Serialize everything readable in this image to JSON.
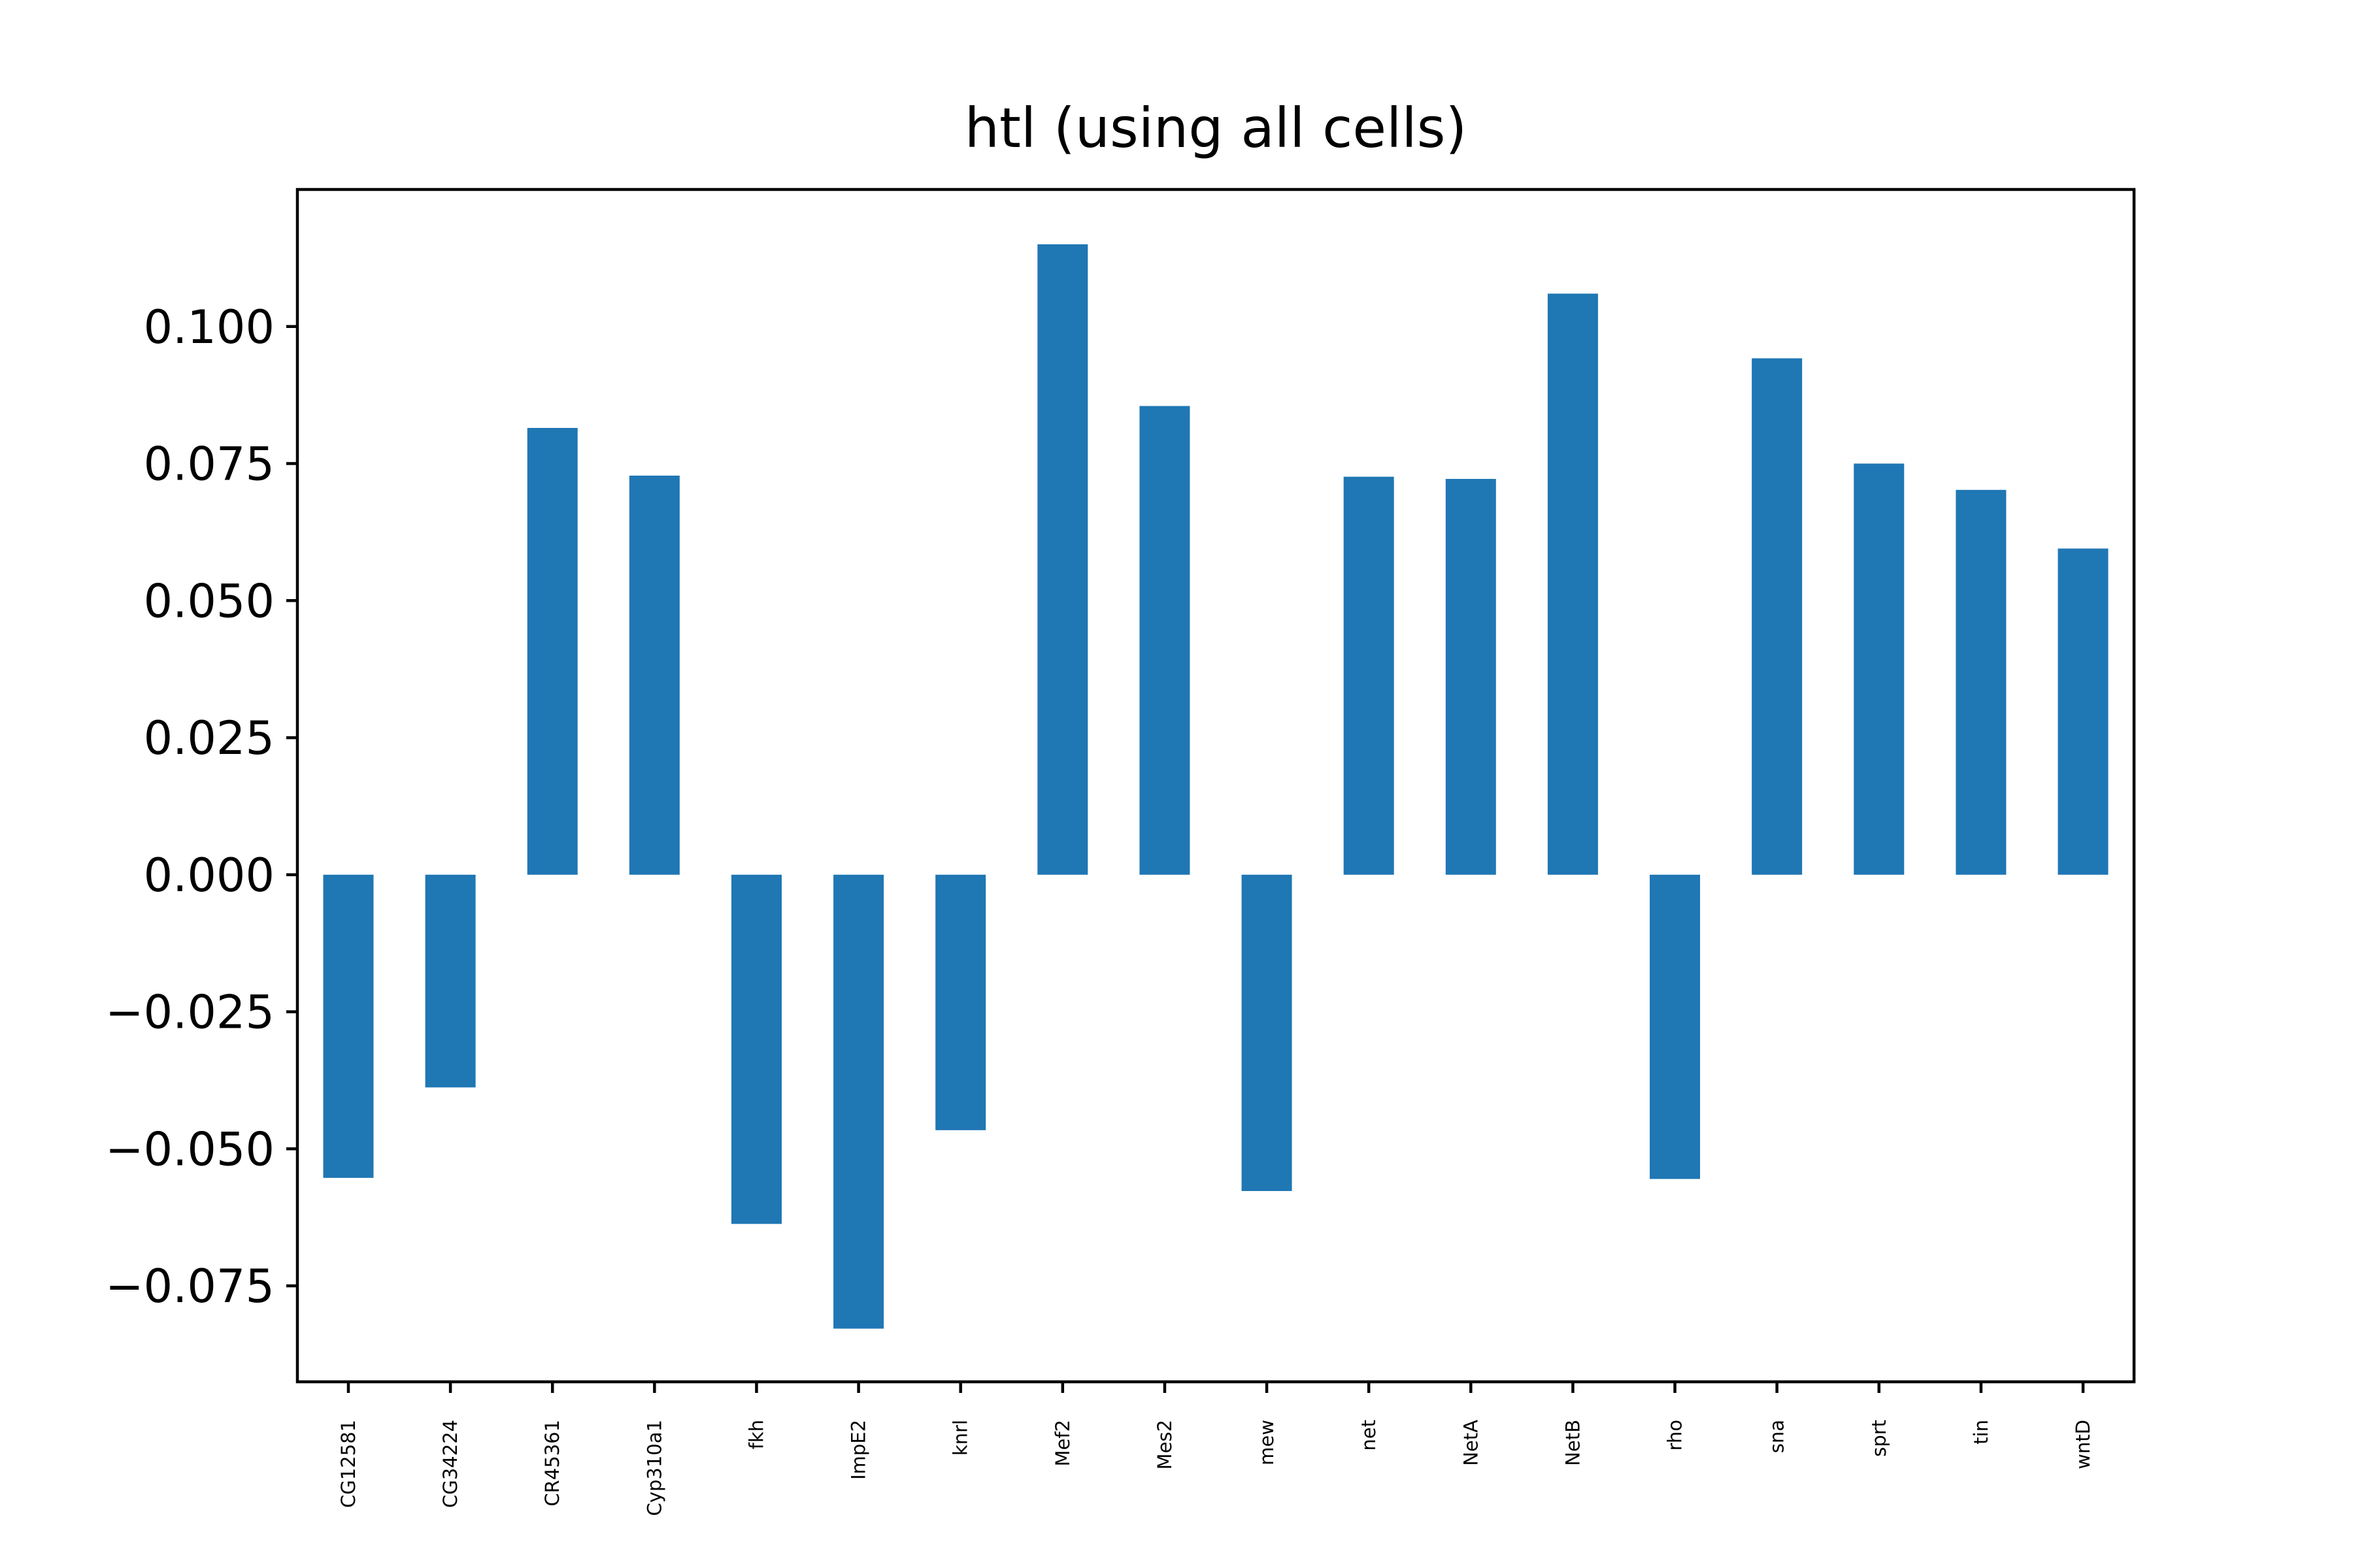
{
  "chart_data": {
    "type": "bar",
    "title": "htl (using all cells)",
    "xlabel": "",
    "ylabel": "",
    "categories": [
      "CG12581",
      "CG34224",
      "CR45361",
      "Cyp310a1",
      "fkh",
      "ImpE2",
      "knrl",
      "Mef2",
      "Mes2",
      "mew",
      "net",
      "NetA",
      "NetB",
      "rho",
      "sna",
      "sprt",
      "tin",
      "wntD"
    ],
    "values": [
      -0.0553,
      -0.0388,
      0.0815,
      0.0728,
      -0.0637,
      -0.0828,
      -0.0466,
      0.115,
      0.0855,
      -0.0577,
      0.0726,
      0.0722,
      0.106,
      -0.0555,
      0.0942,
      0.075,
      0.0702,
      0.0595
    ],
    "ylim": [
      -0.0925,
      0.125
    ],
    "yticks": [
      0.1,
      0.075,
      0.05,
      0.025,
      0.0,
      -0.025,
      -0.05,
      -0.075
    ],
    "ytick_labels": [
      "0.100",
      "0.075",
      "0.050",
      "0.025",
      "0.000",
      "−0.025",
      "−0.050",
      "−0.075"
    ],
    "bar_color": "#1f77b4",
    "grid": false,
    "legend": "none"
  }
}
